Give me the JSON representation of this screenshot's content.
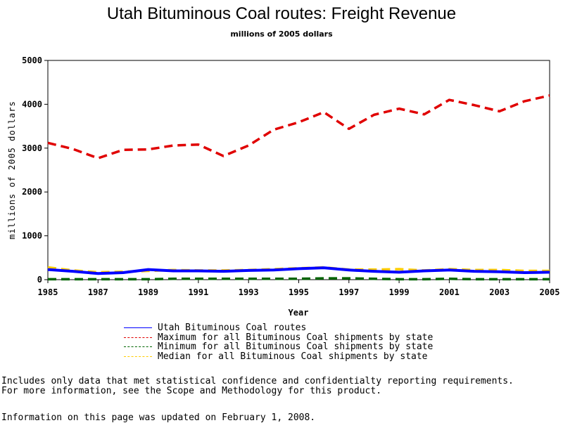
{
  "page": {
    "notes": [
      "Includes only data that met statistical confidence and confidentialty reporting requirements.",
      "For more information, see the Scope and Methodology for this product."
    ],
    "updated": "Information on this page was updated on February 1, 2008."
  },
  "chart_data": {
    "type": "line",
    "title": "Utah Bituminous Coal routes: Freight Revenue",
    "subtitle": "millions of 2005 dollars",
    "xlabel": "Year",
    "ylabel": "millions of 2005 dollars",
    "x": [
      1985,
      1986,
      1987,
      1988,
      1989,
      1990,
      1991,
      1992,
      1993,
      1994,
      1995,
      1996,
      1997,
      1998,
      1999,
      2000,
      2001,
      2002,
      2003,
      2004,
      2005
    ],
    "xticks": [
      "1985",
      "1987",
      "1989",
      "1991",
      "1993",
      "1995",
      "1997",
      "1999",
      "2001",
      "2003",
      "2005"
    ],
    "yticks": [
      "0",
      "1000",
      "2000",
      "3000",
      "4000",
      "5000"
    ],
    "ylim": [
      0,
      5000
    ],
    "xlim": [
      1985,
      2005
    ],
    "grid": false,
    "legend_position": "bottom",
    "series": [
      {
        "name": "Utah Bituminous Coal routes",
        "color": "#0000ff",
        "style": "solid",
        "values": [
          230,
          190,
          140,
          160,
          230,
          200,
          200,
          190,
          210,
          220,
          250,
          270,
          220,
          190,
          170,
          200,
          220,
          190,
          180,
          160,
          170
        ]
      },
      {
        "name": "Maximum for all Bituminous Coal shipments by state",
        "color": "#e00000",
        "style": "dashed",
        "values": [
          3120,
          2980,
          2770,
          2960,
          2970,
          3060,
          3080,
          2820,
          3060,
          3420,
          3590,
          3820,
          3440,
          3760,
          3900,
          3770,
          4100,
          3980,
          3840,
          4070,
          4200
        ]
      },
      {
        "name": "Minimum for all Bituminous Coal shipments by state",
        "color": "#006400",
        "style": "dashed",
        "values": [
          10,
          10,
          10,
          10,
          10,
          20,
          20,
          20,
          20,
          20,
          20,
          30,
          30,
          20,
          10,
          10,
          20,
          10,
          10,
          10,
          10
        ]
      },
      {
        "name": "Median for all Bituminous Coal shipments by state",
        "color": "#ffcc00",
        "style": "dashed",
        "values": [
          280,
          210,
          170,
          180,
          200,
          220,
          210,
          210,
          220,
          240,
          260,
          280,
          230,
          230,
          240,
          210,
          240,
          220,
          220,
          200,
          200
        ]
      }
    ]
  }
}
